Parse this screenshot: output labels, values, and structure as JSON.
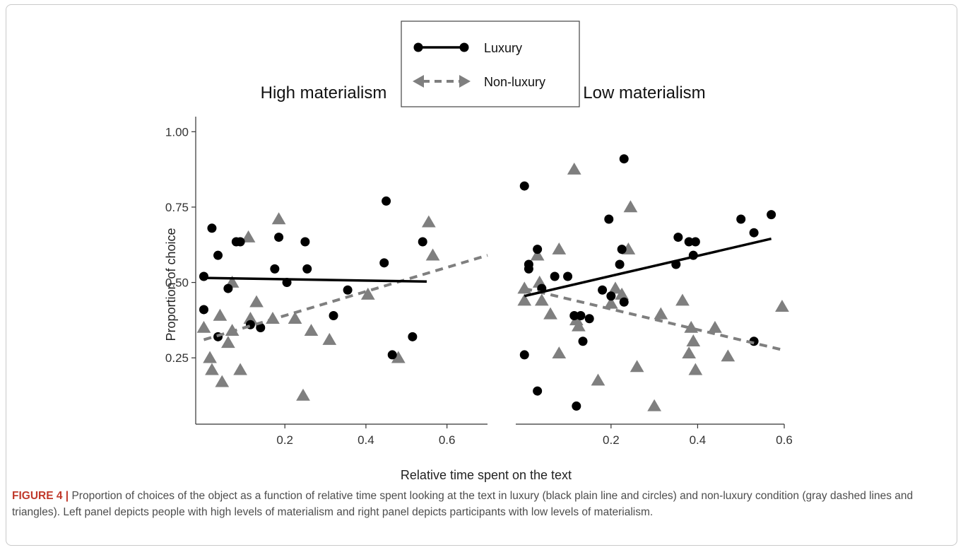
{
  "chart_data": {
    "type": "scatter",
    "ylabel": "Proportion of choice",
    "xlabel": "Relative time spent on the text",
    "legend": {
      "placement": "top-center",
      "entries": [
        {
          "label": "Luxury",
          "marker": "circle",
          "line": "solid",
          "color": "#000000"
        },
        {
          "label": "Non-luxury",
          "marker": "triangle",
          "line": "dashed",
          "color": "#808080"
        }
      ]
    },
    "ylim": [
      0.03,
      1.05
    ],
    "yticks": [
      0.25,
      0.5,
      0.75,
      1.0
    ],
    "ytick_labels": [
      "0.25",
      "0.50",
      "0.75",
      "1.00"
    ],
    "panels": [
      {
        "title": "High materialism",
        "xlim": [
          -0.02,
          0.7
        ],
        "xticks": [
          0.2,
          0.4,
          0.6
        ],
        "xtick_labels": [
          "0.2",
          "0.4",
          "0.6"
        ],
        "series": [
          {
            "name": "Luxury",
            "points": [
              [
                0.0,
                0.52
              ],
              [
                0.0,
                0.41
              ],
              [
                0.02,
                0.68
              ],
              [
                0.035,
                0.32
              ],
              [
                0.035,
                0.59
              ],
              [
                0.06,
                0.48
              ],
              [
                0.08,
                0.635
              ],
              [
                0.09,
                0.635
              ],
              [
                0.115,
                0.36
              ],
              [
                0.14,
                0.35
              ],
              [
                0.175,
                0.545
              ],
              [
                0.185,
                0.65
              ],
              [
                0.205,
                0.5
              ],
              [
                0.25,
                0.635
              ],
              [
                0.255,
                0.545
              ],
              [
                0.32,
                0.39
              ],
              [
                0.355,
                0.475
              ],
              [
                0.445,
                0.565
              ],
              [
                0.45,
                0.77
              ],
              [
                0.465,
                0.26
              ],
              [
                0.515,
                0.32
              ],
              [
                0.54,
                0.635
              ]
            ],
            "trend": [
              [
                0.0,
                0.515
              ],
              [
                0.55,
                0.503
              ]
            ]
          },
          {
            "name": "Non-luxury",
            "points": [
              [
                0.0,
                0.35
              ],
              [
                0.015,
                0.25
              ],
              [
                0.02,
                0.21
              ],
              [
                0.04,
                0.39
              ],
              [
                0.045,
                0.17
              ],
              [
                0.06,
                0.3
              ],
              [
                0.07,
                0.34
              ],
              [
                0.07,
                0.5
              ],
              [
                0.09,
                0.21
              ],
              [
                0.11,
                0.65
              ],
              [
                0.115,
                0.38
              ],
              [
                0.13,
                0.435
              ],
              [
                0.17,
                0.38
              ],
              [
                0.185,
                0.71
              ],
              [
                0.225,
                0.38
              ],
              [
                0.245,
                0.125
              ],
              [
                0.265,
                0.34
              ],
              [
                0.31,
                0.31
              ],
              [
                0.405,
                0.46
              ],
              [
                0.48,
                0.25
              ],
              [
                0.555,
                0.7
              ],
              [
                0.565,
                0.59
              ]
            ],
            "trend": [
              [
                0.0,
                0.31
              ],
              [
                0.7,
                0.59
              ]
            ]
          }
        ]
      },
      {
        "title": "Low materialism",
        "xlim": [
          -0.02,
          0.6
        ],
        "xticks": [
          0.2,
          0.4,
          0.6
        ],
        "xtick_labels": [
          "0.2",
          "0.4",
          "0.6"
        ],
        "series": [
          {
            "name": "Luxury",
            "points": [
              [
                0.0,
                0.82
              ],
              [
                0.0,
                0.26
              ],
              [
                0.01,
                0.56
              ],
              [
                0.01,
                0.545
              ],
              [
                0.03,
                0.61
              ],
              [
                0.03,
                0.14
              ],
              [
                0.04,
                0.48
              ],
              [
                0.07,
                0.52
              ],
              [
                0.1,
                0.52
              ],
              [
                0.115,
                0.39
              ],
              [
                0.12,
                0.09
              ],
              [
                0.13,
                0.39
              ],
              [
                0.135,
                0.305
              ],
              [
                0.15,
                0.38
              ],
              [
                0.18,
                0.475
              ],
              [
                0.195,
                0.71
              ],
              [
                0.2,
                0.455
              ],
              [
                0.22,
                0.56
              ],
              [
                0.225,
                0.61
              ],
              [
                0.23,
                0.435
              ],
              [
                0.23,
                0.91
              ],
              [
                0.35,
                0.56
              ],
              [
                0.355,
                0.65
              ],
              [
                0.38,
                0.635
              ],
              [
                0.39,
                0.59
              ],
              [
                0.395,
                0.635
              ],
              [
                0.5,
                0.71
              ],
              [
                0.53,
                0.305
              ],
              [
                0.53,
                0.665
              ],
              [
                0.57,
                0.725
              ]
            ],
            "trend": [
              [
                0.0,
                0.455
              ],
              [
                0.57,
                0.645
              ]
            ]
          },
          {
            "name": "Non-luxury",
            "points": [
              [
                0.0,
                0.48
              ],
              [
                0.0,
                0.44
              ],
              [
                0.03,
                0.59
              ],
              [
                0.035,
                0.5
              ],
              [
                0.04,
                0.44
              ],
              [
                0.06,
                0.395
              ],
              [
                0.08,
                0.61
              ],
              [
                0.08,
                0.265
              ],
              [
                0.115,
                0.875
              ],
              [
                0.12,
                0.375
              ],
              [
                0.125,
                0.355
              ],
              [
                0.17,
                0.175
              ],
              [
                0.2,
                0.43
              ],
              [
                0.21,
                0.48
              ],
              [
                0.225,
                0.46
              ],
              [
                0.24,
                0.61
              ],
              [
                0.245,
                0.75
              ],
              [
                0.26,
                0.22
              ],
              [
                0.3,
                0.09
              ],
              [
                0.315,
                0.395
              ],
              [
                0.365,
                0.44
              ],
              [
                0.38,
                0.265
              ],
              [
                0.385,
                0.35
              ],
              [
                0.39,
                0.305
              ],
              [
                0.395,
                0.21
              ],
              [
                0.44,
                0.35
              ],
              [
                0.47,
                0.255
              ],
              [
                0.595,
                0.42
              ]
            ],
            "trend": [
              [
                0.0,
                0.48
              ],
              [
                0.6,
                0.275
              ]
            ]
          }
        ]
      }
    ]
  },
  "caption": {
    "label": "FIGURE 4 |",
    "text": " Proportion of choices of the object as a function of relative time spent looking at the text in luxury (black plain line and circles) and non-luxury condition (gray dashed lines and triangles). Left panel depicts people with high levels of materialism and right panel depicts participants with low levels of materialism."
  }
}
